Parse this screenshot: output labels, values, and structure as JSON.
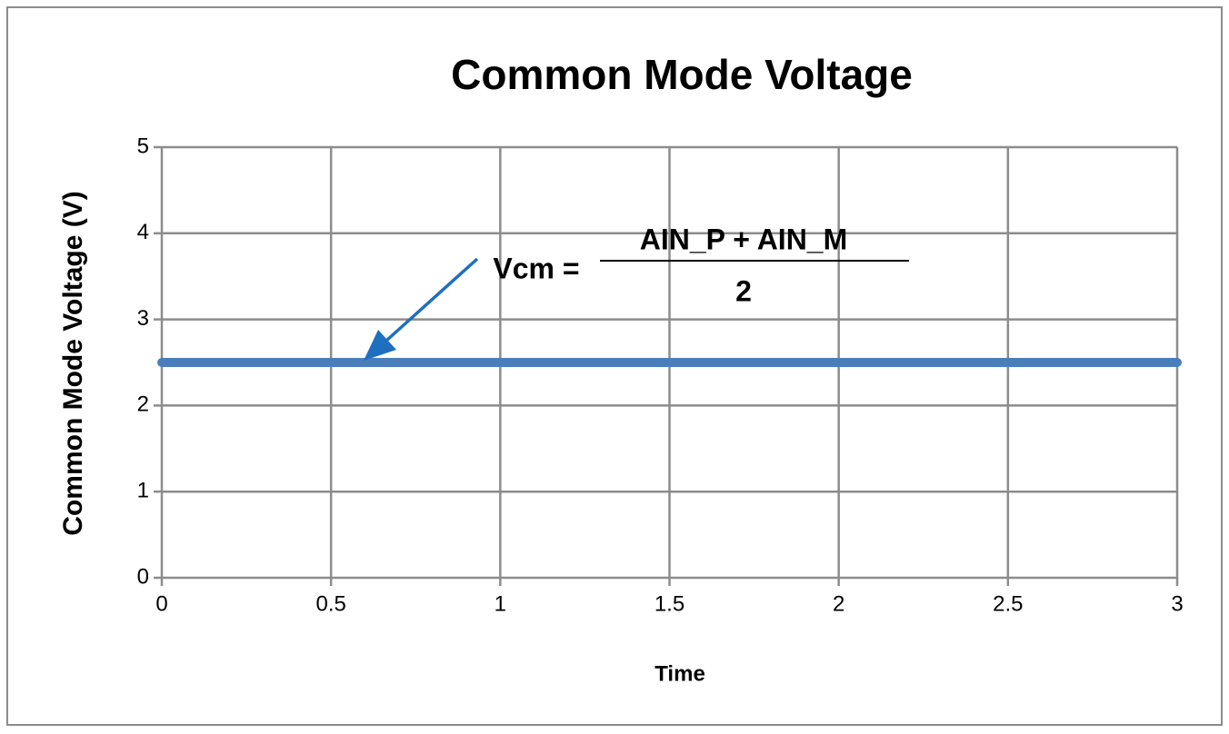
{
  "chart_data": {
    "type": "line",
    "title": "Common Mode Voltage",
    "xlabel": "Time",
    "ylabel": "Common Mode Voltage (V)",
    "x": [
      0,
      3
    ],
    "values": [
      2.5,
      2.5
    ],
    "color": "#4a7ebb",
    "xlim": [
      0,
      3
    ],
    "xticks": [
      0,
      0.5,
      1,
      1.5,
      2,
      2.5,
      3
    ],
    "ylim": [
      0,
      5
    ],
    "yticks": [
      0,
      1,
      2,
      3,
      4,
      5
    ],
    "grid": true,
    "annotation": {
      "text": "Vcm =",
      "numerator": "AIN_P + AIN_M",
      "denominator": "2"
    }
  }
}
